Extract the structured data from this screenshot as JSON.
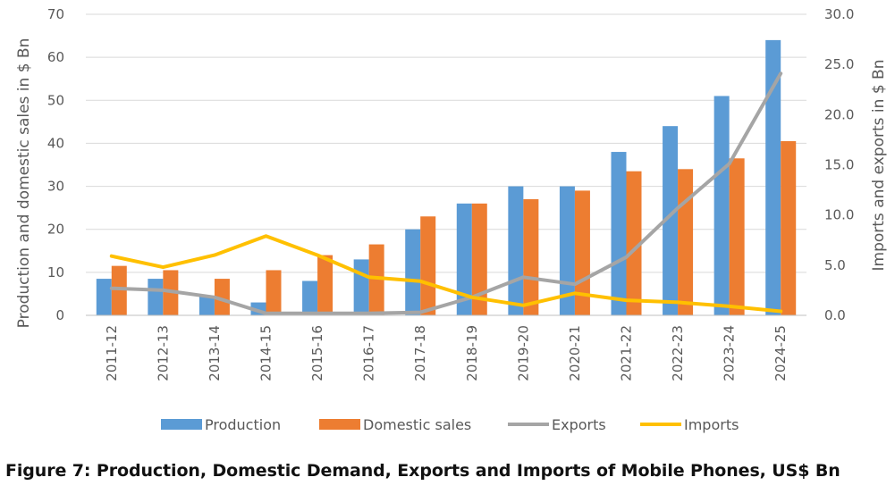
{
  "chart_data": {
    "type": "bar",
    "categories": [
      "2011-12",
      "2012-13",
      "2013-14",
      "2014-15",
      "2015-16",
      "2016-17",
      "2017-18",
      "2018-19",
      "2019-20",
      "2020-21",
      "2021-22",
      "2022-23",
      "2023-24",
      "2024-25"
    ],
    "series": [
      {
        "name": "Production",
        "type": "bar",
        "axis": "left",
        "color": "#5B9BD5",
        "values": [
          8.5,
          8.5,
          4.5,
          3,
          8,
          13,
          20,
          26,
          30,
          30,
          38,
          44,
          51,
          64
        ]
      },
      {
        "name": "Domestic sales",
        "type": "bar",
        "axis": "left",
        "color": "#ED7D31",
        "values": [
          11.5,
          10.5,
          8.5,
          10.5,
          14,
          16.5,
          23,
          26,
          27,
          29,
          33.5,
          34,
          36.5,
          40.5
        ]
      },
      {
        "name": "Exports",
        "type": "line",
        "axis": "right",
        "color": "#A5A5A5",
        "values": [
          2.7,
          2.5,
          1.8,
          0.2,
          0.2,
          0.2,
          0.3,
          1.8,
          3.8,
          3.1,
          5.8,
          10.7,
          15.1,
          24.1
        ]
      },
      {
        "name": "Imports",
        "type": "line",
        "axis": "right",
        "color": "#FFC000",
        "values": [
          5.9,
          4.8,
          6.0,
          7.9,
          6.0,
          3.8,
          3.4,
          1.8,
          1.0,
          2.2,
          1.5,
          1.3,
          0.9,
          0.4
        ]
      }
    ],
    "ylabel": "Production and domestic sales in $ Bn",
    "y2label": "Imports and exports in $ Bn",
    "ylim": [
      0,
      70
    ],
    "y2lim": [
      0,
      30
    ],
    "yticks": [
      "0",
      "10",
      "20",
      "30",
      "40",
      "50",
      "60",
      "70"
    ],
    "y2ticks": [
      "0.0",
      "5.0",
      "10.0",
      "15.0",
      "20.0",
      "25.0",
      "30.0"
    ],
    "grid": true,
    "legend_position": "bottom"
  },
  "caption": "Figure 7: Production, Domestic Demand, Exports and Imports of Mobile Phones, US$ Bn"
}
